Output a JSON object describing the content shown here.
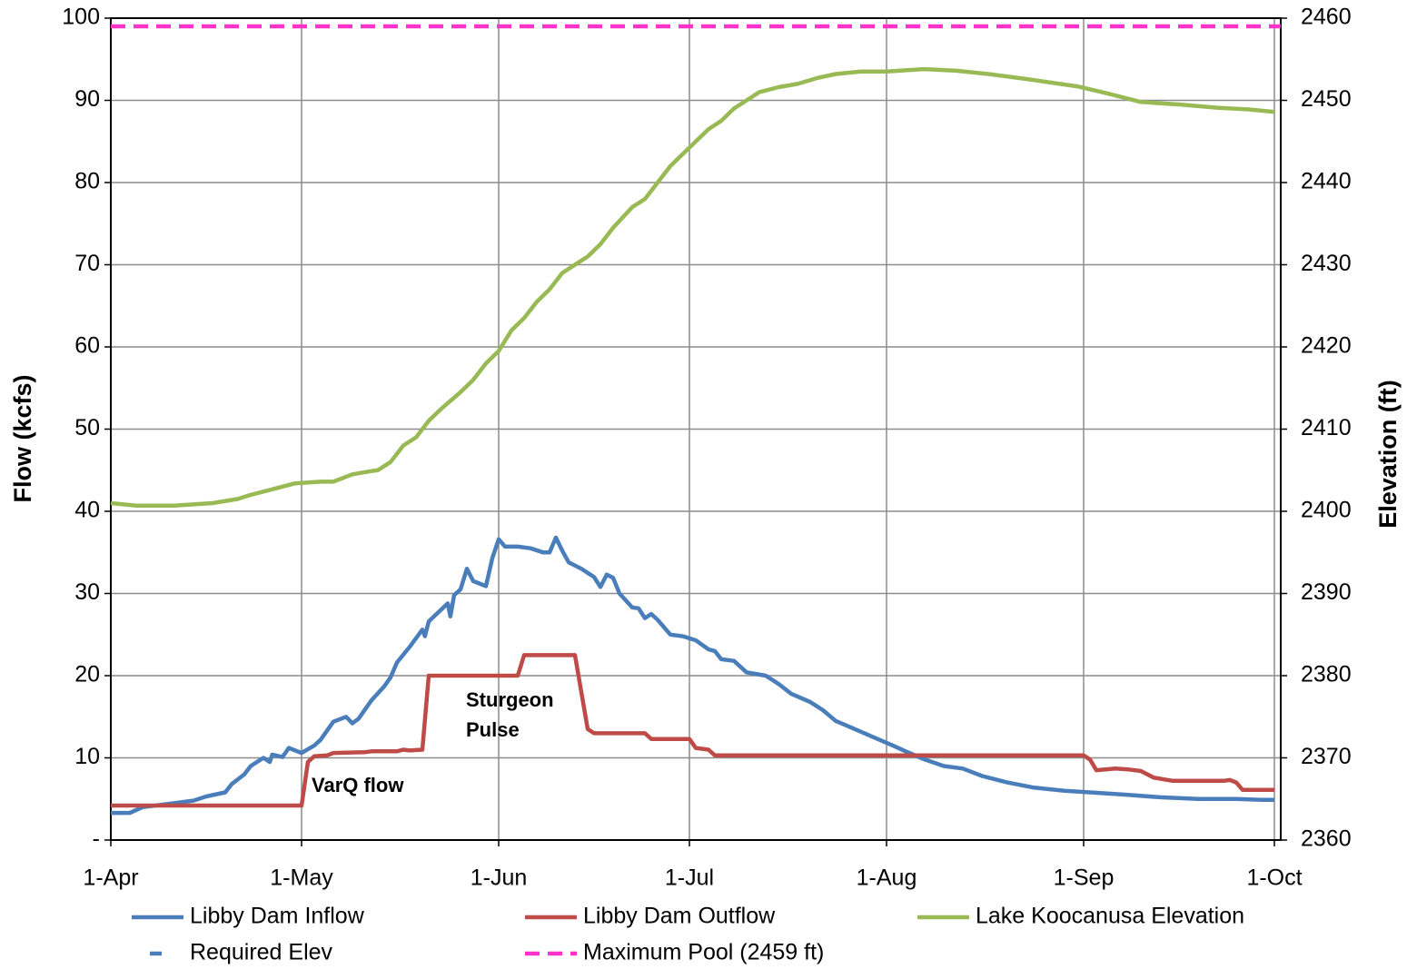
{
  "chart_data": {
    "type": "line",
    "y_axis_label": "Flow (kcfs)",
    "y2_axis_label": "Elevation (ft)",
    "xlim": [
      0,
      184
    ],
    "xticks": [
      {
        "value": 0,
        "label": "1-Apr"
      },
      {
        "value": 30,
        "label": "1-May"
      },
      {
        "value": 61,
        "label": "1-Jun"
      },
      {
        "value": 91,
        "label": "1-Jul"
      },
      {
        "value": 122,
        "label": "1-Aug"
      },
      {
        "value": 153,
        "label": "1-Sep"
      },
      {
        "value": 183,
        "label": "1-Oct"
      }
    ],
    "ylim": [
      0,
      100
    ],
    "yticks": [
      {
        "value": 0,
        "label": "-"
      },
      10,
      20,
      30,
      40,
      50,
      60,
      70,
      80,
      90,
      100
    ],
    "y2lim": [
      2360,
      2460
    ],
    "y2ticks": [
      2360,
      2370,
      2380,
      2390,
      2400,
      2410,
      2420,
      2430,
      2440,
      2450,
      2460
    ],
    "grid": true,
    "legend": "bottom",
    "annotations": [
      "VarQ flow",
      "Sturgeon Pulse"
    ],
    "series": [
      {
        "name": "Libby Dam Inflow",
        "color": "#4a7ebb",
        "style": "solid",
        "x": [
          0,
          3,
          5,
          9,
          13,
          15,
          18,
          19,
          21,
          22,
          24,
          25,
          25.4,
          27,
          28,
          30,
          32,
          33,
          35,
          37,
          38,
          39,
          41,
          43,
          44,
          45,
          47,
          49,
          49.4,
          50,
          53,
          53.4,
          54,
          55,
          56,
          57,
          59,
          60,
          61,
          62,
          64,
          66,
          68,
          69,
          70,
          71,
          72,
          74,
          76,
          77,
          78,
          79,
          80,
          82,
          83,
          84,
          85,
          86,
          88,
          90,
          92,
          94,
          95,
          96,
          98,
          100,
          103,
          105,
          107,
          110,
          112,
          114,
          117,
          120,
          123,
          125,
          128,
          131,
          134,
          137,
          141,
          145,
          150,
          154,
          160,
          165,
          171,
          177,
          181,
          183
        ],
        "values": [
          3.3,
          3.3,
          4.0,
          4.4,
          4.8,
          5.3,
          5.8,
          6.8,
          8.0,
          9.0,
          10.0,
          9.5,
          10.4,
          10.1,
          11.2,
          10.6,
          11.5,
          12.2,
          14.4,
          15.0,
          14.2,
          14.8,
          17.0,
          18.7,
          19.8,
          21.6,
          23.5,
          25.6,
          24.8,
          26.6,
          28.8,
          27.2,
          29.8,
          30.5,
          33.0,
          31.5,
          30.9,
          34.3,
          36.6,
          35.7,
          35.7,
          35.5,
          35.0,
          35.0,
          36.8,
          35.2,
          33.8,
          33.0,
          32.0,
          30.8,
          32.3,
          31.9,
          30.0,
          28.3,
          28.2,
          27.0,
          27.5,
          26.8,
          25.0,
          24.8,
          24.3,
          23.2,
          23.0,
          22.0,
          21.8,
          20.4,
          20.0,
          19.0,
          17.8,
          16.8,
          15.8,
          14.5,
          13.5,
          12.5,
          11.5,
          10.8,
          9.8,
          9.0,
          8.7,
          7.8,
          7.0,
          6.4,
          6.0,
          5.8,
          5.5,
          5.2,
          5.0,
          5.0,
          4.9,
          4.9
        ]
      },
      {
        "name": "Libby Dam Outflow",
        "color": "#be4b48",
        "style": "solid",
        "x": [
          0,
          30,
          31,
          32,
          34,
          35,
          40,
          41,
          45,
          46,
          47,
          49,
          50,
          64,
          65,
          73,
          74,
          75,
          76,
          84,
          85,
          91,
          92,
          94,
          95,
          153,
          154,
          155,
          158,
          160,
          162,
          164,
          167,
          175,
          176,
          177,
          178,
          183
        ],
        "values": [
          4.2,
          4.2,
          9.5,
          10.2,
          10.3,
          10.6,
          10.7,
          10.8,
          10.8,
          11.0,
          10.9,
          11.0,
          20.0,
          20.0,
          22.5,
          22.5,
          18.0,
          13.5,
          13.0,
          13.0,
          12.3,
          12.3,
          11.2,
          11.0,
          10.3,
          10.3,
          9.8,
          8.5,
          8.7,
          8.6,
          8.4,
          7.6,
          7.2,
          7.2,
          7.3,
          7.0,
          6.1,
          6.1
        ]
      },
      {
        "name": "Lake Koocanusa Elevation",
        "color": "#98b954",
        "style": "solid",
        "axis": "y2",
        "x": [
          0,
          4,
          10,
          16,
          20,
          22,
          26,
          29,
          33,
          35,
          38,
          41,
          42,
          44,
          46,
          48,
          50,
          52,
          55,
          57,
          59,
          61,
          63,
          65,
          67,
          69,
          71,
          73,
          75,
          77,
          79,
          82,
          84,
          86,
          88,
          90,
          92,
          94,
          96,
          98,
          100,
          102,
          105,
          108,
          111,
          114,
          118,
          122,
          128,
          133,
          138,
          144,
          152,
          157,
          162,
          168,
          174,
          179,
          183
        ],
        "values": [
          2401.0,
          2400.7,
          2400.7,
          2401.0,
          2401.5,
          2402.0,
          2402.8,
          2403.4,
          2403.6,
          2403.6,
          2404.5,
          2404.9,
          2405.0,
          2406.0,
          2408.0,
          2409.0,
          2411.0,
          2412.5,
          2414.5,
          2416.0,
          2418.0,
          2419.5,
          2422.0,
          2423.5,
          2425.5,
          2427.0,
          2429.0,
          2430.0,
          2431.0,
          2432.5,
          2434.5,
          2437.0,
          2438.0,
          2440.0,
          2442.0,
          2443.5,
          2445.0,
          2446.5,
          2447.5,
          2449.0,
          2450.0,
          2451.0,
          2451.6,
          2452.0,
          2452.7,
          2453.2,
          2453.5,
          2453.5,
          2453.8,
          2453.6,
          2453.2,
          2452.6,
          2451.7,
          2450.8,
          2449.8,
          2449.5,
          2449.1,
          2448.9,
          2448.6
        ]
      },
      {
        "name": "Required Elev",
        "color": "#4a7ebb",
        "style": "marker",
        "axis": "y2",
        "x": [],
        "values": []
      },
      {
        "name": "Maximum Pool (2459 ft)",
        "color": "#ff33cc",
        "style": "dashed",
        "axis": "y2",
        "x": [
          0,
          184
        ],
        "values": [
          2459,
          2459
        ]
      }
    ]
  }
}
